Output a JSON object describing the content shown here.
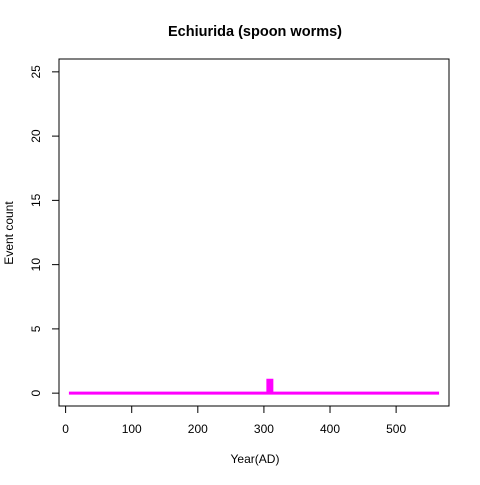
{
  "chart_data": {
    "type": "line",
    "title": "Echiurida (spoon worms)",
    "xlabel": "Year(AD)",
    "ylabel": "Event count",
    "xlim": [
      -10,
      580
    ],
    "ylim": [
      -1,
      26
    ],
    "x_ticks": [
      0,
      100,
      200,
      300,
      400,
      500
    ],
    "y_ticks": [
      0,
      5,
      10,
      15,
      20,
      25
    ],
    "grid": false,
    "legend": "none",
    "series": [
      {
        "color": "#ff00ff",
        "points": [
          [
            5,
            0
          ],
          [
            306,
            0
          ],
          [
            306,
            1
          ],
          [
            308,
            1
          ],
          [
            308,
            0
          ],
          [
            310,
            0
          ],
          [
            310,
            1
          ],
          [
            312,
            1
          ],
          [
            312,
            0
          ],
          [
            565,
            0
          ]
        ]
      }
    ]
  }
}
